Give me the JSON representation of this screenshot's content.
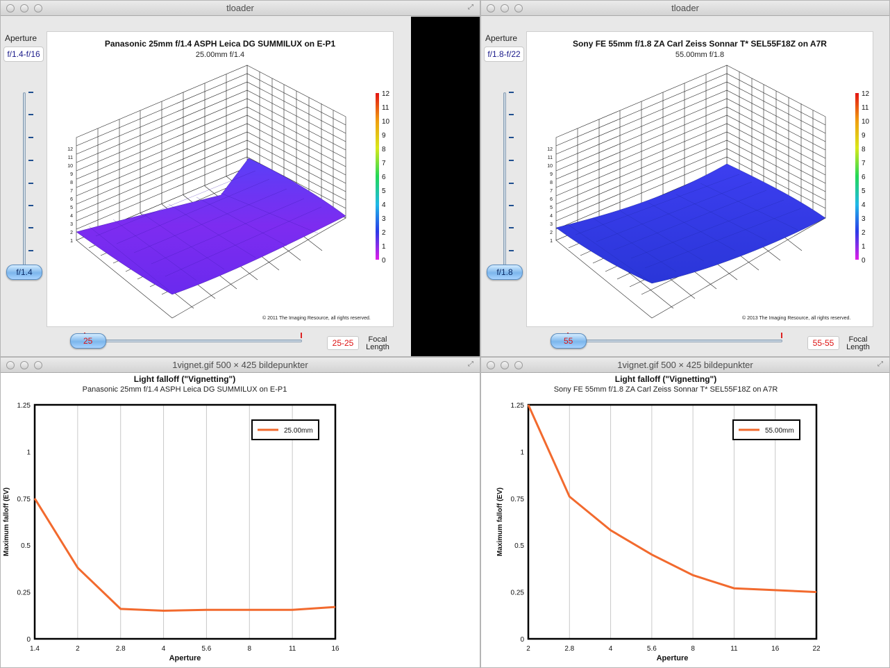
{
  "windows": {
    "left_top_title": "tloader",
    "right_top_title": "tloader",
    "left_bottom_title": "1vignet.gif 500 × 425 bildepunkter",
    "right_bottom_title": "1vignet.gif 500 × 425 bildepunkter"
  },
  "left_viewer": {
    "aperture_label": "Aperture",
    "aperture_range": "f/1.4-f/16",
    "aperture_value": "f/1.4",
    "focal_value": "25",
    "focal_range": "25-25",
    "focal_label_1": "Focal",
    "focal_label_2": "Length",
    "plot_title": "Panasonic 25mm f/1.4 ASPH Leica DG SUMMILUX on E-P1",
    "plot_subtitle": "25.00mm f/1.4",
    "copyright": "© 2011 The Imaging Resource, all rights reserved."
  },
  "right_viewer": {
    "aperture_label": "Aperture",
    "aperture_range": "f/1.8-f/22",
    "aperture_value": "f/1.8",
    "focal_value": "55",
    "focal_range": "55-55",
    "focal_label_1": "Focal",
    "focal_label_2": "Length",
    "plot_title": "Sony FE 55mm f/1.8 ZA Carl Zeiss Sonnar T* SEL55F18Z on A7R",
    "plot_subtitle": "55.00mm f/1.8",
    "copyright": "© 2013 The Imaging Resource, all rights reserved."
  },
  "z_axis_ticks": [
    "1",
    "2",
    "3",
    "4",
    "5",
    "6",
    "7",
    "8",
    "9",
    "10",
    "11",
    "12"
  ],
  "colorbar_ticks": [
    "12",
    "11",
    "10",
    "9",
    "8",
    "7",
    "6",
    "5",
    "4",
    "3",
    "2",
    "1",
    "0"
  ],
  "colors": {
    "surface_left": "#7a2cf0",
    "surface_right": "#3a3ee8",
    "line_orange": "#f26a2e",
    "knob_blue": "#7cb6ec",
    "red_text": "#dd1111"
  },
  "chart_data": [
    {
      "type": "line",
      "title": "Light falloff (\"Vignetting\")",
      "subtitle": "Panasonic 25mm f/1.4 ASPH Leica DG SUMMILUX on E-P1",
      "xlabel": "Aperture",
      "ylabel": "Maximum falloff (EV)",
      "categories": [
        "1.4",
        "2",
        "2.8",
        "4",
        "5.6",
        "8",
        "11",
        "16"
      ],
      "ylim": [
        0,
        1.25
      ],
      "yticks": [
        "0",
        "0.25",
        "0.5",
        "0.75",
        "1",
        "1.25"
      ],
      "legend": "top-right",
      "series": [
        {
          "name": "25.00mm",
          "values": [
            0.75,
            0.38,
            0.16,
            0.15,
            0.155,
            0.155,
            0.155,
            0.17
          ]
        }
      ]
    },
    {
      "type": "line",
      "title": "Light falloff (\"Vignetting\")",
      "subtitle": "Sony FE 55mm f/1.8 ZA Carl Zeiss Sonnar T* SEL55F18Z on A7R",
      "xlabel": "Aperture",
      "ylabel": "Maximum falloff (EV)",
      "categories": [
        "2",
        "2.8",
        "4",
        "5.6",
        "8",
        "11",
        "16",
        "22"
      ],
      "ylim": [
        0,
        1.25
      ],
      "yticks": [
        "0",
        "0.25",
        "0.5",
        "0.75",
        "1",
        "1.25"
      ],
      "legend": "top-right",
      "series": [
        {
          "name": "55.00mm",
          "values": [
            1.25,
            0.76,
            0.58,
            0.45,
            0.34,
            0.27,
            0.26,
            0.25
          ]
        }
      ]
    }
  ]
}
